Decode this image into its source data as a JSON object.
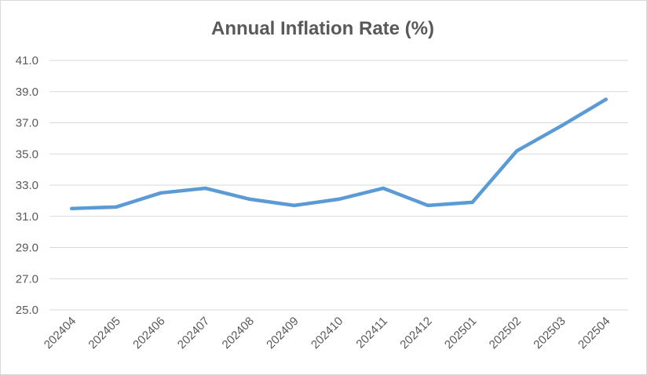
{
  "chart_data": {
    "type": "line",
    "title": "Annual Inflation Rate (%)",
    "xlabel": "",
    "ylabel": "",
    "categories": [
      "202404",
      "202405",
      "202406",
      "202407",
      "202408",
      "202409",
      "202410",
      "202411",
      "202412",
      "202501",
      "202502",
      "202503",
      "202504"
    ],
    "series": [
      {
        "values": [
          31.5,
          31.6,
          32.5,
          32.8,
          32.1,
          31.7,
          32.1,
          32.8,
          31.7,
          31.9,
          35.2,
          36.8,
          38.5
        ]
      }
    ],
    "ylim": [
      25.0,
      41.0
    ],
    "y_ticks": [
      "41.0",
      "39.0",
      "37.0",
      "35.0",
      "33.0",
      "31.0",
      "29.0",
      "27.0",
      "25.0"
    ],
    "grid": true,
    "legend": "none",
    "colors": {
      "line": "#5b9bd5",
      "grid": "#d9d9d9",
      "text": "#595959"
    }
  }
}
